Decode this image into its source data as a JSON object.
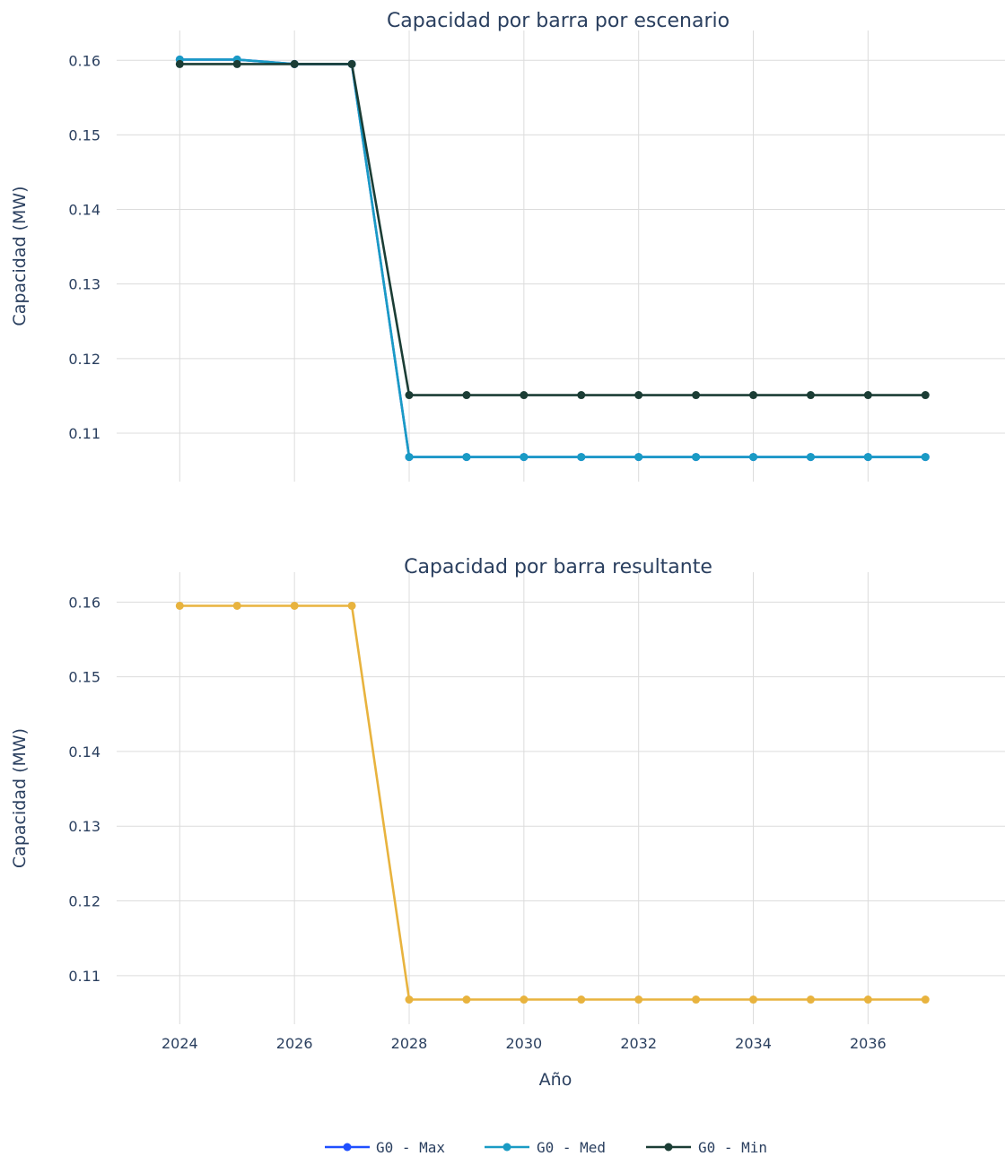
{
  "chart_data": [
    {
      "type": "line",
      "title": "Capacidad por barra por escenario",
      "xlabel": "",
      "ylabel": "Capacidad (MW)",
      "x": [
        2024,
        2025,
        2026,
        2027,
        2028,
        2029,
        2030,
        2031,
        2032,
        2033,
        2034,
        2035,
        2036,
        2037
      ],
      "xlim": [
        2022.9,
        2038.2
      ],
      "ylim": [
        0.1035,
        0.164
      ],
      "xticks": [
        2024,
        2026,
        2028,
        2030,
        2032,
        2034,
        2036
      ],
      "yticks": [
        0.11,
        0.12,
        0.13,
        0.14,
        0.15,
        0.16
      ],
      "ytick_labels": [
        "0.11",
        "0.12",
        "0.13",
        "0.14",
        "0.15",
        "0.16"
      ],
      "show_x_tick_labels": false,
      "grid": true,
      "series": [
        {
          "name": "G0 - Max",
          "color": "#1f4fff",
          "values": [
            0.1601,
            0.1601,
            0.1595,
            0.1595,
            0.1068,
            0.1068,
            0.1068,
            0.1068,
            0.1068,
            0.1068,
            0.1068,
            0.1068,
            0.1068,
            0.1068
          ]
        },
        {
          "name": "G0 - Med",
          "color": "#1a9bc4",
          "values": [
            0.1601,
            0.1601,
            0.1595,
            0.1595,
            0.1068,
            0.1068,
            0.1068,
            0.1068,
            0.1068,
            0.1068,
            0.1068,
            0.1068,
            0.1068,
            0.1068
          ]
        },
        {
          "name": "G0 - Min",
          "color": "#1b3d35",
          "values": [
            0.1595,
            0.1595,
            0.1595,
            0.1595,
            0.1151,
            0.1151,
            0.1151,
            0.1151,
            0.1151,
            0.1151,
            0.1151,
            0.1151,
            0.1151,
            0.1151
          ]
        }
      ]
    },
    {
      "type": "line",
      "title": "Capacidad por barra resultante",
      "xlabel": "Año",
      "ylabel": "Capacidad (MW)",
      "x": [
        2024,
        2025,
        2026,
        2027,
        2028,
        2029,
        2030,
        2031,
        2032,
        2033,
        2034,
        2035,
        2036,
        2037
      ],
      "xlim": [
        2022.9,
        2038.2
      ],
      "ylim": [
        0.1035,
        0.164
      ],
      "xticks": [
        2024,
        2026,
        2028,
        2030,
        2032,
        2034,
        2036
      ],
      "xtick_labels": [
        "2024",
        "2026",
        "2028",
        "2030",
        "2032",
        "2034",
        "2036"
      ],
      "yticks": [
        0.11,
        0.12,
        0.13,
        0.14,
        0.15,
        0.16
      ],
      "ytick_labels": [
        "0.11",
        "0.12",
        "0.13",
        "0.14",
        "0.15",
        "0.16"
      ],
      "show_x_tick_labels": true,
      "grid": true,
      "series": [
        {
          "name": "",
          "color": "#e8b33e",
          "values": [
            0.1595,
            0.1595,
            0.1595,
            0.1595,
            0.1068,
            0.1068,
            0.1068,
            0.1068,
            0.1068,
            0.1068,
            0.1068,
            0.1068,
            0.1068,
            0.1068
          ]
        }
      ]
    }
  ],
  "legend": {
    "position": "bottom",
    "items": [
      {
        "label": "G0  -  Max",
        "color": "#1f4fff"
      },
      {
        "label": "G0  -  Med",
        "color": "#1a9bc4"
      },
      {
        "label": "G0  -  Min",
        "color": "#1b3d35"
      }
    ]
  }
}
